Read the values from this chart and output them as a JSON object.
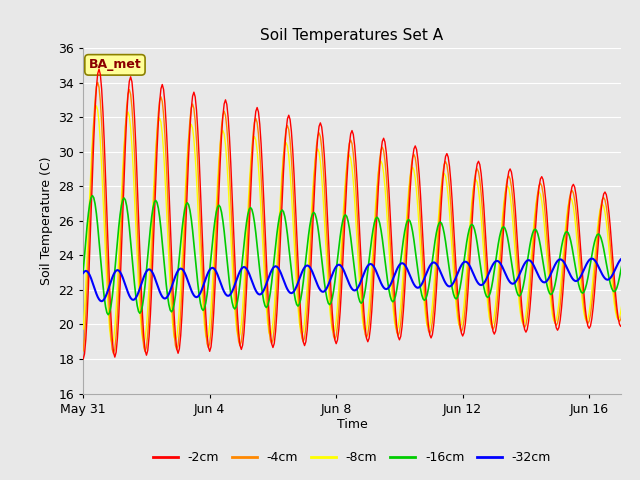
{
  "title": "Soil Temperatures Set A",
  "xlabel": "Time",
  "ylabel": "Soil Temperature (C)",
  "ylim": [
    16,
    36
  ],
  "yticks": [
    16,
    18,
    20,
    22,
    24,
    26,
    28,
    30,
    32,
    34,
    36
  ],
  "bg_color": "#e8e8e8",
  "grid_color": "#ffffff",
  "annotation_text": "BA_met",
  "annotation_bg": "#ffff99",
  "annotation_border": "#8B8000",
  "annotation_text_color": "#8B0000",
  "colors": {
    "-2cm": "#ff0000",
    "-4cm": "#ff8800",
    "-8cm": "#ffff00",
    "-16cm": "#00cc00",
    "-32cm": "#0000ff"
  },
  "n_days": 18,
  "xtick_positions": [
    0,
    4,
    8,
    12,
    16
  ],
  "xtick_labels": [
    "May 31",
    "Jun 4",
    "Jun 8",
    "Jun 12",
    "Jun 16"
  ],
  "figsize": [
    6.4,
    4.8
  ],
  "dpi": 100
}
